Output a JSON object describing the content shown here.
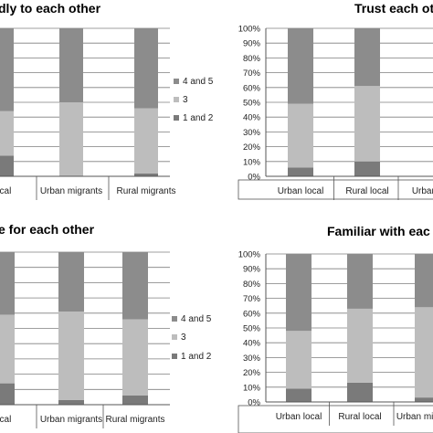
{
  "colors": {
    "c12": "#7a7a7a",
    "c3": "#bdbdbd",
    "c45": "#8c8c8c",
    "axis": "#555555",
    "grid": "#7f7f7f"
  },
  "chart_data": [
    {
      "type": "bar",
      "stacked": true,
      "title": "dly to each other",
      "categories": [
        "local",
        "Urban migrants",
        "Rural migrants"
      ],
      "series": [
        {
          "name": "1 and 2",
          "values": [
            14,
            0,
            2
          ]
        },
        {
          "name": "3",
          "values": [
            30,
            50,
            44
          ]
        },
        {
          "name": "4 and 5",
          "values": [
            56,
            50,
            54
          ]
        }
      ],
      "ylim": [
        0,
        100
      ],
      "legend": "right",
      "legend_entries": [
        "4 and 5",
        "3",
        "1 and 2"
      ]
    },
    {
      "type": "bar",
      "stacked": true,
      "title": "Trust each ot",
      "categories": [
        "Urban local",
        "Rural local",
        "Urban m"
      ],
      "series": [
        {
          "name": "1 and 2",
          "values": [
            6,
            10,
            0
          ]
        },
        {
          "name": "3",
          "values": [
            43,
            51,
            0
          ]
        },
        {
          "name": "4 and 5",
          "values": [
            51,
            39,
            0
          ]
        }
      ],
      "yticks": [
        "0%",
        "10%",
        "20%",
        "30%",
        "40%",
        "50%",
        "60%",
        "70%",
        "80%",
        "90%",
        "100%"
      ],
      "ylim": [
        0,
        100
      ],
      "grid": true
    },
    {
      "type": "bar",
      "stacked": true,
      "title": "e for each other",
      "categories": [
        "local",
        "Urban migrants",
        "Rural migrants"
      ],
      "series": [
        {
          "name": "1 and 2",
          "values": [
            14,
            3,
            6
          ]
        },
        {
          "name": "3",
          "values": [
            45,
            58,
            50
          ]
        },
        {
          "name": "4 and 5",
          "values": [
            41,
            39,
            44
          ]
        }
      ],
      "ylim": [
        0,
        100
      ],
      "legend": "right",
      "legend_entries": [
        "4 and 5",
        "3",
        "1 and 2"
      ]
    },
    {
      "type": "bar",
      "stacked": true,
      "title": "Familiar with eac",
      "categories": [
        "Urban local",
        "Rural local",
        "Urban migrants"
      ],
      "series": [
        {
          "name": "1 and 2",
          "values": [
            9,
            13,
            3
          ]
        },
        {
          "name": "3",
          "values": [
            39,
            50,
            61
          ]
        },
        {
          "name": "4 and 5",
          "values": [
            52,
            37,
            36
          ]
        }
      ],
      "yticks": [
        "0%",
        "10%",
        "20%",
        "30%",
        "40%",
        "50%",
        "60%",
        "70%",
        "80%",
        "90%",
        "100%"
      ],
      "ylim": [
        0,
        100
      ],
      "grid": true
    }
  ]
}
